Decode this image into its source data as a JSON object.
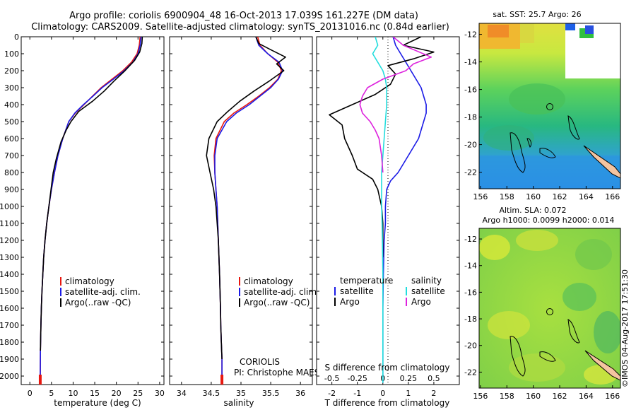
{
  "titles": {
    "line1": "Argo profile: coriolis 6900904_48 16-Oct-2013 17.039S 161.227E (DM data)",
    "line2": "Climatology: CARS2009. Satellite-adjusted climatology: synTS_20131016.nc (0.84d earlier)"
  },
  "colors": {
    "climatology": "#e8170f",
    "satellite": "#1a1ae6",
    "argo": "#000000",
    "salinity_sat": "#22dddd",
    "salinity_argo": "#dd22dd",
    "sand": "#f4c4a0"
  },
  "depth_axis": {
    "min": 0,
    "max": 2050,
    "ticks": [
      0,
      100,
      200,
      300,
      400,
      500,
      600,
      700,
      800,
      900,
      1000,
      1100,
      1200,
      1300,
      1400,
      1500,
      1600,
      1700,
      1800,
      1900,
      2000
    ]
  },
  "chart_data": [
    {
      "type": "line",
      "id": "temperature",
      "xlabel": "temperature (deg C)",
      "ylabel": "depth",
      "xlim": [
        -2,
        31
      ],
      "ylim": [
        2050,
        0
      ],
      "xticks": [
        0,
        5,
        10,
        15,
        20,
        25,
        30
      ],
      "legend": [
        "climatology",
        "satellite-adj. clim.",
        "Argo(..raw -QC)"
      ],
      "legend_position": "bottom-left",
      "series": [
        {
          "name": "climatology",
          "color_key": "climatology",
          "x": [
            25.5,
            25.3,
            24.8,
            23.5,
            21.5,
            19.0,
            16.5,
            14.5,
            12.5,
            10.5,
            9.0,
            7.6,
            6.5,
            5.7,
            5.0,
            4.4,
            3.9,
            3.5,
            3.2,
            3.0,
            2.8,
            2.65,
            2.55,
            2.45,
            2.4
          ],
          "y": [
            0,
            50,
            100,
            150,
            200,
            250,
            300,
            350,
            400,
            450,
            500,
            600,
            700,
            800,
            900,
            1000,
            1100,
            1200,
            1300,
            1400,
            1500,
            1600,
            1700,
            1850,
            2040
          ]
        },
        {
          "name": "satellite",
          "color_key": "satellite",
          "x": [
            25.7,
            25.5,
            25.0,
            23.8,
            21.8,
            19.3,
            16.7,
            14.6,
            12.4,
            10.4,
            9.0,
            7.6,
            6.5,
            5.7,
            5.0,
            4.4,
            3.9,
            3.5,
            3.2,
            3.0,
            2.8,
            2.65,
            2.55,
            2.45,
            2.4
          ],
          "y": [
            0,
            50,
            100,
            150,
            200,
            250,
            300,
            350,
            400,
            450,
            500,
            600,
            700,
            800,
            900,
            1000,
            1100,
            1200,
            1300,
            1400,
            1500,
            1600,
            1700,
            1850,
            2040
          ]
        },
        {
          "name": "Argo",
          "color_key": "argo",
          "x": [
            26.0,
            25.9,
            25.4,
            24.2,
            22.0,
            19.5,
            17.2,
            14.5,
            11.3,
            9.5,
            8.4,
            7.2,
            6.1,
            5.4,
            4.9,
            4.4,
            3.9,
            3.5,
            3.2,
            3.0,
            2.8,
            2.65,
            2.55,
            2.45
          ],
          "y": [
            0,
            40,
            90,
            140,
            200,
            260,
            320,
            380,
            440,
            500,
            550,
            620,
            720,
            800,
            900,
            1000,
            1100,
            1200,
            1300,
            1400,
            1500,
            1600,
            1700,
            1850
          ]
        }
      ]
    },
    {
      "type": "line",
      "id": "salinity",
      "xlabel": "salinity",
      "ylabel": "depth",
      "xlim": [
        33.8,
        36.2
      ],
      "ylim": [
        2050,
        0
      ],
      "xticks": [
        34,
        34.5,
        35,
        35.5,
        36
      ],
      "legend": [
        "climatology",
        "satellite-adj. clim.",
        "Argo(..raw -QC)"
      ],
      "legend_position": "bottom-left",
      "series": [
        {
          "name": "climatology",
          "color_key": "climatology",
          "x": [
            35.28,
            35.32,
            35.45,
            35.62,
            35.68,
            35.62,
            35.48,
            35.3,
            35.1,
            34.88,
            34.72,
            34.58,
            34.55,
            34.56,
            34.58,
            34.6,
            34.62,
            34.64,
            34.655,
            34.66,
            34.67,
            34.68,
            34.68
          ],
          "y": [
            0,
            50,
            100,
            150,
            200,
            250,
            300,
            350,
            400,
            450,
            500,
            600,
            700,
            800,
            900,
            1000,
            1200,
            1400,
            1600,
            1700,
            1800,
            1900,
            2040
          ]
        },
        {
          "name": "satellite",
          "color_key": "satellite",
          "x": [
            35.25,
            35.3,
            35.45,
            35.64,
            35.7,
            35.63,
            35.5,
            35.32,
            35.14,
            34.92,
            34.76,
            34.6,
            34.56,
            34.56,
            34.58,
            34.6,
            34.62,
            34.64,
            34.655,
            34.66,
            34.67,
            34.68,
            34.68
          ],
          "y": [
            0,
            50,
            100,
            150,
            200,
            250,
            300,
            350,
            400,
            450,
            500,
            600,
            700,
            800,
            900,
            1000,
            1200,
            1400,
            1600,
            1700,
            1800,
            1900,
            2040
          ]
        },
        {
          "name": "Argo",
          "color_key": "argo",
          "x": [
            35.25,
            35.3,
            35.52,
            35.75,
            35.6,
            35.72,
            35.48,
            35.22,
            34.98,
            34.78,
            34.6,
            34.46,
            34.42,
            34.48,
            34.54,
            34.58,
            34.62,
            34.64,
            34.655,
            34.66,
            34.67,
            34.68
          ],
          "y": [
            0,
            40,
            80,
            120,
            160,
            200,
            260,
            320,
            380,
            440,
            500,
            600,
            700,
            800,
            900,
            1000,
            1200,
            1400,
            1600,
            1700,
            1800,
            1900
          ]
        }
      ],
      "annotations": [
        "CORIOLIS",
        "PI: Christophe MAES"
      ]
    },
    {
      "type": "line",
      "id": "difference",
      "xlabel": "T difference from climatology",
      "xlabel_top": "S difference from climatology",
      "xlim": [
        -2.6,
        3.0
      ],
      "ylim": [
        2050,
        0
      ],
      "xticks": [
        -2,
        -1,
        0,
        1,
        2
      ],
      "xticks_top": [
        "-0.5",
        "-0.25",
        "0",
        "0.25",
        "0.5"
      ],
      "legend": {
        "temperature_header": "temperature",
        "salinity_header": "salinity",
        "t_sat": "satellite",
        "t_argo": "Argo",
        "s_sat": "satellite",
        "s_argo": "Argo"
      },
      "series": [
        {
          "name": "T satellite",
          "color_key": "satellite",
          "x": [
            0.4,
            0.5,
            0.7,
            0.9,
            1.1,
            1.3,
            1.5,
            1.6,
            1.7,
            1.7,
            1.6,
            1.4,
            1.0,
            0.6,
            0.3,
            0.15,
            0.1,
            0.1,
            0.05,
            0.02,
            0.0,
            0.0,
            0.0,
            0.0,
            0.0
          ],
          "y": [
            0,
            50,
            100,
            150,
            200,
            250,
            300,
            350,
            400,
            450,
            500,
            600,
            700,
            800,
            850,
            900,
            1000,
            1100,
            1200,
            1400,
            1600,
            1700,
            1800,
            1900,
            2040
          ]
        },
        {
          "name": "T Argo",
          "color_key": "argo",
          "x": [
            1.5,
            0.8,
            2.0,
            1.2,
            0.2,
            0.5,
            0.3,
            -0.3,
            -1.2,
            -2.1,
            -1.6,
            -1.5,
            -1.2,
            -1.0,
            -0.4,
            -0.2,
            -0.05,
            0.0,
            0.0,
            0.0
          ],
          "y": [
            0,
            50,
            90,
            130,
            170,
            220,
            280,
            340,
            400,
            460,
            520,
            600,
            700,
            780,
            840,
            900,
            1000,
            1100,
            1200,
            1300
          ]
        },
        {
          "name": "S satellite",
          "color_key": "salinity_sat",
          "x": [
            -0.3,
            -0.2,
            -0.4,
            -0.2,
            0.0,
            0.1,
            0.15,
            0.15,
            0.1,
            0.05,
            0.0,
            -0.05,
            -0.05,
            -0.05,
            -0.03,
            -0.02,
            0.0,
            0.0,
            0.0,
            0.0
          ],
          "y": [
            0,
            50,
            100,
            150,
            200,
            250,
            300,
            400,
            500,
            600,
            700,
            800,
            900,
            1000,
            1100,
            1200,
            1400,
            1600,
            1800,
            2040
          ]
        },
        {
          "name": "S Argo",
          "color_key": "salinity_argo",
          "x": [
            0.4,
            0.8,
            1.9,
            1.2,
            0.9,
            0.0,
            -0.6,
            -0.8,
            -0.9,
            -0.8,
            -0.5,
            -0.3,
            -0.15,
            -0.05,
            0.0
          ],
          "y": [
            0,
            50,
            120,
            160,
            200,
            250,
            300,
            350,
            400,
            450,
            500,
            550,
            600,
            700,
            800
          ]
        }
      ]
    },
    {
      "type": "heatmap",
      "id": "sst_map",
      "title": "sat. SST: 25.7 Argo: 26",
      "xticks": [
        156,
        158,
        160,
        162,
        164,
        166
      ],
      "yticks": [
        -12,
        -14,
        -16,
        -18,
        -20,
        -22
      ],
      "xlim": [
        155.9,
        166.6
      ],
      "ylim": [
        -23.2,
        -11.2
      ],
      "argo_position": {
        "lon": 161.227,
        "lat": -17.039
      }
    },
    {
      "type": "heatmap",
      "id": "sla_map",
      "title_line1": "Altim. SLA: 0.072",
      "title_line2": "Argo h1000: 0.0099 h2000: 0.014",
      "xticks": [
        156,
        158,
        160,
        162,
        164,
        166
      ],
      "yticks": [
        -12,
        -14,
        -16,
        -18,
        -20,
        -22
      ],
      "xlim": [
        155.9,
        166.6
      ],
      "ylim": [
        -23.2,
        -11.2
      ],
      "argo_position": {
        "lon": 161.227,
        "lat": -17.039
      }
    }
  ],
  "watermark": "©IMOS 04-Aug-2017 17:51:30"
}
